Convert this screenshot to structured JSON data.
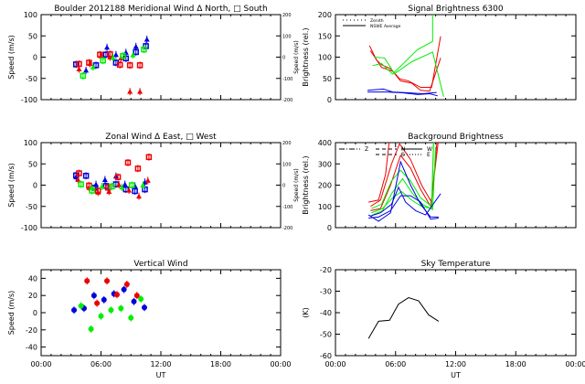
{
  "colors": {
    "red": "#ee0000",
    "green": "#00ee00",
    "blue": "#0000dd",
    "axis": "#000000"
  },
  "x_axis": {
    "label": "UT",
    "ticks": [
      "00:00",
      "06:00",
      "12:00",
      "18:00",
      "00:00"
    ],
    "range_hours": [
      0,
      24
    ]
  },
  "chart_data": [
    {
      "type": "scatter",
      "title": "Boulder   2012188    Meridional Wind   Δ North, □ South",
      "ylabel": "Speed (m/s)",
      "ylim": [
        -100,
        100
      ],
      "yticks": [
        "100",
        "50",
        "0",
        "-50",
        "-100"
      ],
      "right_ylabel": "Speed (m/s)",
      "right_yticks": [
        "200",
        "100",
        "0",
        "-100",
        "-200"
      ],
      "series": [
        {
          "color": "blue",
          "points": [
            [
              3.5,
              -17
            ],
            [
              4.5,
              -31
            ],
            [
              5.5,
              -19
            ],
            [
              6.6,
              23
            ],
            [
              6.5,
              6
            ],
            [
              7.5,
              6
            ],
            [
              7.5,
              -13
            ],
            [
              8.5,
              11
            ],
            [
              8.5,
              -3
            ],
            [
              9.5,
              25
            ],
            [
              9.5,
              12
            ],
            [
              10.6,
              42
            ],
            [
              10.5,
              26
            ]
          ]
        },
        {
          "color": "red",
          "points": [
            [
              3.8,
              -16
            ],
            [
              3.8,
              -28
            ],
            [
              4.8,
              -13
            ],
            [
              4.9,
              -15
            ],
            [
              5.9,
              6
            ],
            [
              6.0,
              3
            ],
            [
              6.9,
              7
            ],
            [
              6.9,
              0
            ],
            [
              7.9,
              -18
            ],
            [
              8.0,
              -2
            ],
            [
              8.9,
              -19
            ],
            [
              8.9,
              -81
            ],
            [
              9.9,
              -19
            ],
            [
              9.9,
              -81
            ]
          ]
        },
        {
          "color": "green",
          "points": [
            [
              4.2,
              -44
            ],
            [
              5.2,
              -23
            ],
            [
              6.2,
              -8
            ],
            [
              7.2,
              -1
            ],
            [
              8.2,
              3
            ],
            [
              9.2,
              5
            ],
            [
              10.3,
              18
            ]
          ]
        }
      ]
    },
    {
      "type": "line",
      "title": "Signal Brightness        6300",
      "ylabel": "Brightness (rel.)",
      "ylim": [
        0,
        200
      ],
      "yticks": [
        "200",
        "150",
        "100",
        "50",
        "0"
      ],
      "legend": [
        {
          "label": "Zenith",
          "style": "dotted"
        },
        {
          "label": "NSWE Average",
          "style": "solid"
        }
      ],
      "series": [
        {
          "color": "red",
          "points": [
            [
              3.4,
              127
            ],
            [
              4.1,
              93
            ],
            [
              4.6,
              82
            ],
            [
              5.5,
              73
            ],
            [
              6.4,
              49
            ],
            [
              7.3,
              44
            ],
            [
              8.5,
              29
            ],
            [
              9.6,
              29
            ],
            [
              10.5,
              149
            ]
          ]
        },
        {
          "color": "red",
          "points": [
            [
              3.5,
              115
            ],
            [
              4.6,
              76
            ],
            [
              5.7,
              67
            ],
            [
              6.5,
              44
            ],
            [
              7.6,
              39
            ],
            [
              8.5,
              22
            ],
            [
              9.4,
              20
            ],
            [
              10.5,
              98
            ]
          ]
        },
        {
          "color": "green",
          "points": [
            [
              3.7,
              80
            ],
            [
              4.6,
              85
            ],
            [
              5.7,
              60
            ],
            [
              8.2,
              118
            ],
            [
              9.7,
              137
            ],
            [
              9.7,
              230
            ]
          ]
        },
        {
          "color": "green",
          "points": [
            [
              3.9,
              100
            ],
            [
              4.9,
              98
            ],
            [
              5.9,
              61
            ],
            [
              7.6,
              89
            ],
            [
              9.7,
              112
            ],
            [
              10.8,
              7
            ]
          ]
        },
        {
          "color": "blue",
          "points": [
            [
              3.2,
              22
            ],
            [
              4.8,
              25
            ],
            [
              5.7,
              18
            ],
            [
              7.3,
              16
            ],
            [
              8.7,
              14
            ],
            [
              10.1,
              17
            ]
          ]
        },
        {
          "color": "blue",
          "points": [
            [
              3.2,
              18
            ],
            [
              5.1,
              18
            ],
            [
              6.7,
              16
            ],
            [
              8.2,
              12
            ],
            [
              9.4,
              14
            ],
            [
              10.2,
              9
            ]
          ]
        }
      ]
    },
    {
      "type": "scatter",
      "title": "Zonal Wind      Δ East, □ West",
      "ylabel": "Speed (m/s)",
      "ylim": [
        -100,
        100
      ],
      "yticks": [
        "100",
        "50",
        "0",
        "-50",
        "-100"
      ],
      "right_ylabel": "Speed (m/s)",
      "right_yticks": [
        "200",
        "100",
        "0",
        "-100",
        "-200"
      ],
      "series": [
        {
          "color": "blue",
          "points": [
            [
              3.5,
              23
            ],
            [
              3.5,
              19
            ],
            [
              4.5,
              22
            ],
            [
              5.5,
              2
            ],
            [
              5.4,
              -6
            ],
            [
              6.4,
              13
            ],
            [
              6.5,
              -2
            ],
            [
              7.5,
              21
            ],
            [
              7.5,
              2
            ],
            [
              8.4,
              2
            ],
            [
              8.5,
              -10
            ],
            [
              9.4,
              -2
            ],
            [
              9.4,
              -14
            ],
            [
              10.4,
              7
            ],
            [
              10.4,
              -10
            ]
          ]
        },
        {
          "color": "red",
          "points": [
            [
              3.8,
              28
            ],
            [
              3.7,
              13
            ],
            [
              4.8,
              -1
            ],
            [
              4.8,
              -6
            ],
            [
              5.7,
              -13
            ],
            [
              5.7,
              -17
            ],
            [
              6.7,
              -6
            ],
            [
              6.8,
              -15
            ],
            [
              7.7,
              19
            ],
            [
              7.8,
              1
            ],
            [
              8.7,
              53
            ],
            [
              8.8,
              -12
            ],
            [
              9.7,
              39
            ],
            [
              9.8,
              -26
            ],
            [
              10.8,
              66
            ],
            [
              10.7,
              11
            ]
          ]
        },
        {
          "color": "green",
          "points": [
            [
              4.0,
              2
            ],
            [
              5.1,
              -6
            ],
            [
              5.1,
              -13
            ],
            [
              6.1,
              -3
            ],
            [
              7.1,
              -3
            ],
            [
              8.1,
              -5
            ],
            [
              9.1,
              0
            ],
            [
              10.2,
              0
            ]
          ]
        }
      ]
    },
    {
      "type": "line",
      "title": "Background Brightness",
      "ylabel": "Brightness (rel.)",
      "ylim": [
        0,
        400
      ],
      "yticks": [
        "400",
        "300",
        "200",
        "100",
        "0"
      ],
      "legend": [
        {
          "label": "Z"
        },
        {
          "label": "N"
        },
        {
          "label": "S"
        },
        {
          "label": "W"
        },
        {
          "label": "E"
        }
      ],
      "series": [
        {
          "color": "red",
          "points": [
            [
              3.3,
              120
            ],
            [
              4.3,
              130
            ],
            [
              5.0,
              250
            ],
            [
              5.4,
              420
            ]
          ]
        },
        {
          "color": "red",
          "points": [
            [
              3.5,
              100
            ],
            [
              4.5,
              130
            ],
            [
              5.6,
              300
            ],
            [
              6.4,
              395
            ],
            [
              7.5,
              320
            ],
            [
              8.6,
              200
            ],
            [
              9.6,
              120
            ],
            [
              10.2,
              440
            ]
          ]
        },
        {
          "color": "red",
          "points": [
            [
              3.5,
              80
            ],
            [
              4.5,
              90
            ],
            [
              5.5,
              200
            ],
            [
              6.5,
              340
            ],
            [
              7.5,
              280
            ],
            [
              8.5,
              180
            ],
            [
              9.5,
              100
            ],
            [
              10.3,
              420
            ]
          ]
        },
        {
          "color": "green",
          "points": [
            [
              3.6,
              90
            ],
            [
              4.6,
              110
            ],
            [
              5.6,
              220
            ],
            [
              6.5,
              270
            ],
            [
              7.5,
              220
            ],
            [
              8.5,
              140
            ],
            [
              9.6,
              100
            ],
            [
              9.8,
              420
            ]
          ]
        },
        {
          "color": "green",
          "points": [
            [
              3.6,
              70
            ],
            [
              4.7,
              90
            ],
            [
              5.7,
              140
            ],
            [
              6.6,
              170
            ],
            [
              7.6,
              130
            ],
            [
              8.6,
              100
            ],
            [
              9.6,
              90
            ],
            [
              9.8,
              400
            ]
          ]
        },
        {
          "color": "green",
          "points": [
            [
              3.7,
              60
            ],
            [
              4.7,
              80
            ],
            [
              5.6,
              160
            ],
            [
              6.7,
              230
            ],
            [
              7.7,
              160
            ],
            [
              8.7,
              110
            ],
            [
              9.7,
              85
            ],
            [
              10.0,
              380
            ]
          ]
        },
        {
          "color": "blue",
          "points": [
            [
              3.3,
              60
            ],
            [
              4.3,
              30
            ],
            [
              5.5,
              70
            ],
            [
              6.5,
              310
            ],
            [
              7.5,
              200
            ],
            [
              8.5,
              110
            ],
            [
              9.5,
              50
            ],
            [
              10.3,
              50
            ]
          ]
        },
        {
          "color": "blue",
          "points": [
            [
              3.3,
              45
            ],
            [
              4.3,
              50
            ],
            [
              5.5,
              80
            ],
            [
              6.5,
              150
            ],
            [
              7.5,
              150
            ],
            [
              8.5,
              120
            ],
            [
              9.5,
              40
            ],
            [
              10.3,
              45
            ]
          ]
        },
        {
          "color": "blue",
          "points": [
            [
              3.5,
              55
            ],
            [
              4.5,
              70
            ],
            [
              5.6,
              110
            ],
            [
              6.3,
              190
            ],
            [
              7.0,
              120
            ],
            [
              8.0,
              80
            ],
            [
              9.0,
              60
            ],
            [
              10.5,
              160
            ]
          ]
        }
      ]
    },
    {
      "type": "scatter",
      "title": "Vertical Wind",
      "ylabel": "Speed (m/s)",
      "ylim": [
        -50,
        50
      ],
      "yticks": [
        "40",
        "20",
        "0",
        "-20",
        "-40"
      ],
      "ytick_values": [
        40,
        20,
        0,
        -20,
        -40
      ],
      "series": [
        {
          "color": "blue",
          "points": [
            [
              3.3,
              3
            ],
            [
              4.3,
              5
            ],
            [
              5.3,
              20
            ],
            [
              6.3,
              15
            ],
            [
              7.3,
              22
            ],
            [
              8.3,
              27
            ],
            [
              9.3,
              13
            ],
            [
              10.35,
              6
            ]
          ]
        },
        {
          "color": "red",
          "points": [
            [
              4.6,
              37
            ],
            [
              6.6,
              37
            ],
            [
              5.6,
              11
            ],
            [
              7.6,
              21
            ],
            [
              8.6,
              33
            ],
            [
              9.6,
              20
            ]
          ]
        },
        {
          "color": "green",
          "points": [
            [
              4.0,
              8
            ],
            [
              5.0,
              -19
            ],
            [
              6.0,
              -4
            ],
            [
              7.0,
              3
            ],
            [
              8.0,
              5
            ],
            [
              9.0,
              -6
            ],
            [
              10.0,
              16
            ]
          ]
        }
      ]
    },
    {
      "type": "line",
      "title": "Sky Temperature",
      "ylabel": "(K)",
      "ylim": [
        -60,
        -20
      ],
      "yticks": [
        "-20",
        "-30",
        "-40",
        "-50",
        "-60"
      ],
      "series": [
        {
          "color": "axis",
          "points": [
            [
              3.3,
              -52
            ],
            [
              4.3,
              -44
            ],
            [
              5.4,
              -43.5
            ],
            [
              6.3,
              -36
            ],
            [
              7.3,
              -33
            ],
            [
              8.3,
              -34.5
            ],
            [
              9.3,
              -41
            ],
            [
              10.3,
              -44
            ]
          ]
        }
      ]
    }
  ]
}
